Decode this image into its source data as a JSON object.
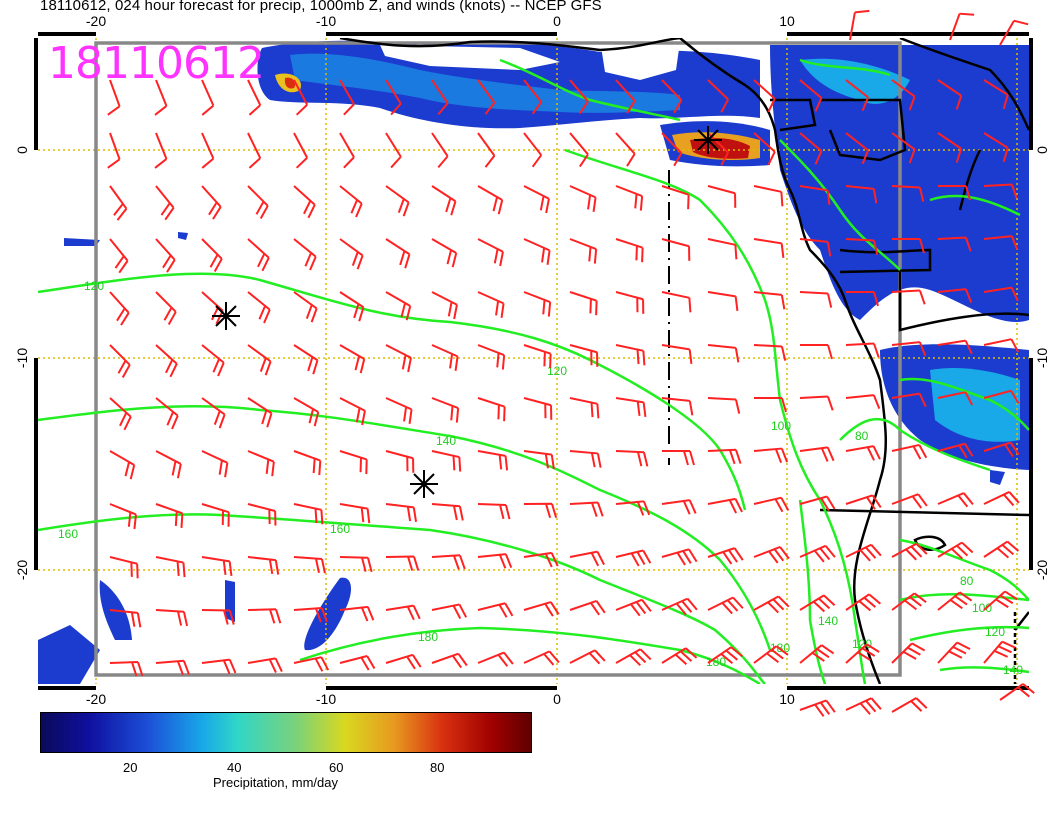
{
  "title": "18110612, 024 hour forecast for precip, 1000mb Z, and winds (knots) -- NCEP GFS",
  "stamp": "18110612",
  "axes": {
    "lon_top": [
      "-20",
      "-10",
      "0",
      "10"
    ],
    "lon_bottom": [
      "-20",
      "-10",
      "0",
      "10"
    ],
    "lat_left": [
      "0",
      "-10",
      "-20"
    ],
    "lat_right": [
      "0",
      "-10",
      "-20"
    ]
  },
  "contour_labels": [
    "120",
    "120",
    "140",
    "160",
    "160",
    "180",
    "180",
    "180",
    "140",
    "120",
    "100",
    "100",
    "80",
    "80",
    "120",
    "140"
  ],
  "colorbar": {
    "ticks": [
      "20",
      "40",
      "60",
      "80"
    ],
    "label": "Precipitation, mm/day",
    "colors": [
      "#0a0a5a",
      "#1c50d8",
      "#19a8e8",
      "#7ad27a",
      "#d8d820",
      "#e89a20",
      "#d83010",
      "#600000"
    ]
  },
  "colors": {
    "barb": "#ff2222",
    "contour": "#22ee22",
    "grid": "#ddbb00",
    "stamp": "#ff33ff"
  }
}
